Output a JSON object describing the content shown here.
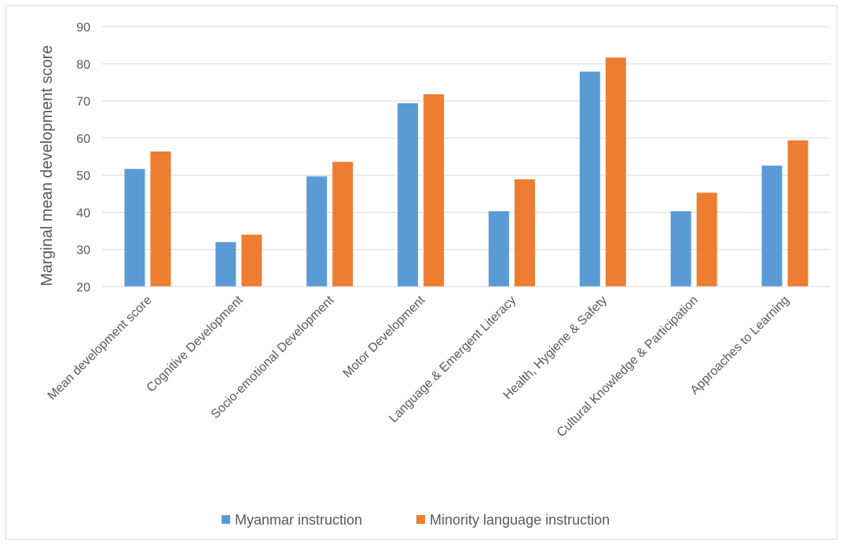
{
  "chart_data": {
    "type": "bar",
    "title": "",
    "xlabel": "",
    "ylabel": "Marginal mean development score",
    "ylim": [
      20,
      90
    ],
    "yticks": [
      "20",
      "30",
      "40",
      "50",
      "60",
      "70",
      "80",
      "90"
    ],
    "grid": true,
    "legend_position": "bottom",
    "categories": [
      "Mean development score",
      "Cognitive Development",
      "Socio-emotional Development",
      "Motor Development",
      "Language & Emergent Literacy",
      "Health, Hygiene & Safety",
      "Cultural Knowledge & Participation",
      "Approaches to Learning"
    ],
    "series": [
      {
        "name": "Myanmar instruction",
        "color": "#5b9bd5",
        "values": [
          51.7,
          32.0,
          49.7,
          69.4,
          40.3,
          77.9,
          40.3,
          52.6
        ]
      },
      {
        "name": "Minority language instruction",
        "color": "#ed7d31",
        "values": [
          56.4,
          34.0,
          53.6,
          71.8,
          48.9,
          81.7,
          45.3,
          59.4
        ]
      }
    ]
  }
}
